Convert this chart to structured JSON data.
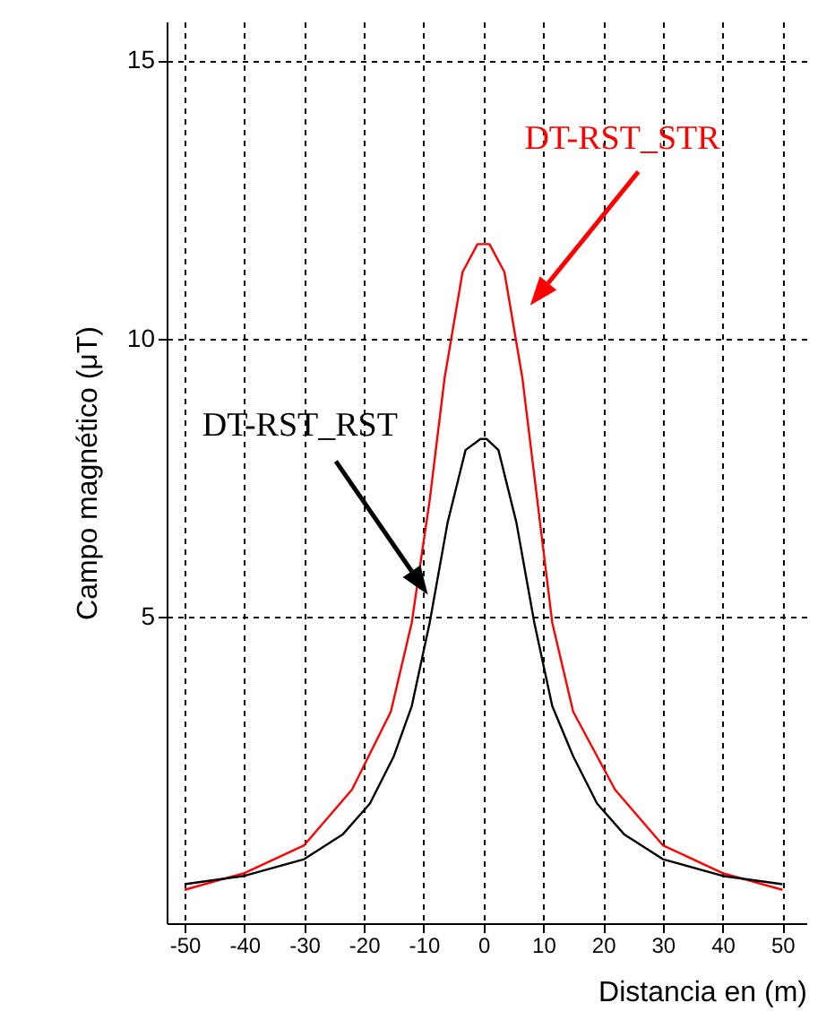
{
  "chart_data": {
    "type": "line",
    "xlabel": "Distancia en  (m)",
    "ylabel": "Campo magnético (μT)",
    "xlim": [
      -53,
      54
    ],
    "ylim": [
      -0.5,
      15.7
    ],
    "xticks": [
      -50,
      -40,
      -30,
      -20,
      -10,
      0,
      10,
      20,
      30,
      40,
      50
    ],
    "yticks": [
      5,
      10,
      15
    ],
    "grid": true,
    "series": [
      {
        "name": "DT-RST_STR",
        "color": "#ff0000",
        "x": [
          -50,
          -40,
          -30,
          -22,
          -15.5,
          -12,
          -9,
          -6.5,
          -3.5,
          -1,
          1,
          3.5,
          6.5,
          9,
          11.5,
          15,
          22,
          30,
          40,
          50
        ],
        "values": [
          0.1,
          0.4,
          0.9,
          1.9,
          3.3,
          4.9,
          7.1,
          9.3,
          11.2,
          11.7,
          11.7,
          11.2,
          9.3,
          7.1,
          4.9,
          3.3,
          1.9,
          0.9,
          0.4,
          0.1
        ]
      },
      {
        "name": "DT-RST_RST",
        "color": "#000000",
        "x": [
          -50,
          -40,
          -30,
          -23.5,
          -19,
          -15,
          -12,
          -9,
          -6,
          -3,
          -0.5,
          0.5,
          2.5,
          5.5,
          8.5,
          11.5,
          15,
          19,
          23.5,
          30,
          40,
          50
        ],
        "values": [
          0.2,
          0.35,
          0.65,
          1.1,
          1.65,
          2.5,
          3.4,
          4.9,
          6.7,
          8.0,
          8.2,
          8.2,
          8.0,
          6.7,
          4.9,
          3.4,
          2.5,
          1.65,
          1.1,
          0.65,
          0.35,
          0.2
        ]
      }
    ]
  }
}
